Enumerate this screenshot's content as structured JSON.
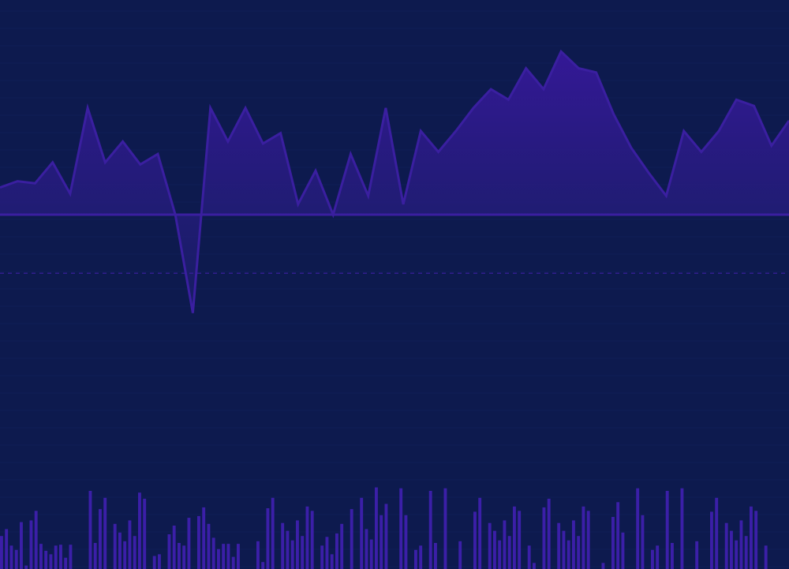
{
  "colors": {
    "background": "#0d1a4e",
    "accent": "#3a1fa0",
    "area_fill_top": "#36189a",
    "area_fill_bottom": "#1a1f6a",
    "baseline": "#3a1fa0",
    "bars": "#3b1fa8",
    "grid": "#15256a"
  },
  "chart_data": [
    {
      "type": "area",
      "title": "",
      "xlabel": "",
      "ylabel": "",
      "grid": true,
      "legend": "none",
      "baseline_value": 0,
      "dashed_reference_value": -28,
      "ylim": [
        -100,
        100
      ],
      "x": [
        0,
        1,
        2,
        3,
        4,
        5,
        6,
        7,
        8,
        9,
        10,
        11,
        12,
        13,
        14,
        15,
        16,
        17,
        18,
        19,
        20,
        21,
        22,
        23,
        24,
        25,
        26,
        27,
        28,
        29,
        30,
        31,
        32,
        33,
        34,
        35,
        36,
        37,
        38,
        39,
        40,
        41,
        42,
        43,
        44,
        45
      ],
      "values": [
        13,
        16,
        15,
        25,
        10,
        51,
        25,
        35,
        24,
        29,
        0,
        -47,
        51,
        35,
        51,
        34,
        39,
        5,
        21,
        0,
        29,
        9,
        51,
        5,
        40,
        30,
        40,
        51,
        60,
        55,
        70,
        60,
        78,
        70,
        68,
        48,
        32,
        20,
        9,
        40,
        30,
        40,
        55,
        52,
        33,
        45
      ]
    },
    {
      "type": "bar",
      "title": "",
      "xlabel": "",
      "ylabel": "",
      "grid": false,
      "legend": "none",
      "ylim": [
        0,
        100
      ],
      "values": [
        38,
        46,
        27,
        22,
        54,
        4,
        56,
        67,
        29,
        21,
        17,
        27,
        28,
        13,
        28,
        0,
        0,
        0,
        90,
        30,
        69,
        82,
        0,
        52,
        42,
        32,
        56,
        38,
        88,
        81,
        0,
        15,
        17,
        0,
        40,
        50,
        30,
        27,
        59,
        0,
        61,
        71,
        52,
        36,
        23,
        29,
        29,
        14,
        29,
        0,
        0,
        0,
        32,
        8,
        70,
        82,
        0,
        53,
        44,
        33,
        56,
        38,
        72,
        67,
        0,
        27,
        37,
        17,
        41,
        52,
        0,
        69,
        0,
        82,
        46,
        34,
        94,
        62,
        75,
        0,
        0,
        93,
        62,
        0,
        22,
        27,
        0,
        90,
        30,
        0,
        93,
        0,
        0,
        32,
        0,
        0,
        66,
        82,
        0,
        53,
        44,
        33,
        56,
        38,
        72,
        67,
        0,
        27,
        7,
        0,
        71,
        81,
        0,
        53,
        44,
        33,
        56,
        38,
        72,
        67,
        0,
        0,
        7,
        0,
        60,
        77,
        42,
        0,
        0,
        93,
        62,
        0,
        22,
        27,
        0,
        90,
        30,
        0,
        93,
        0,
        0,
        32,
        0,
        0,
        66,
        82,
        0,
        53,
        44,
        33,
        56,
        38,
        72,
        67,
        0,
        27,
        0,
        0,
        0,
        0
      ]
    }
  ]
}
